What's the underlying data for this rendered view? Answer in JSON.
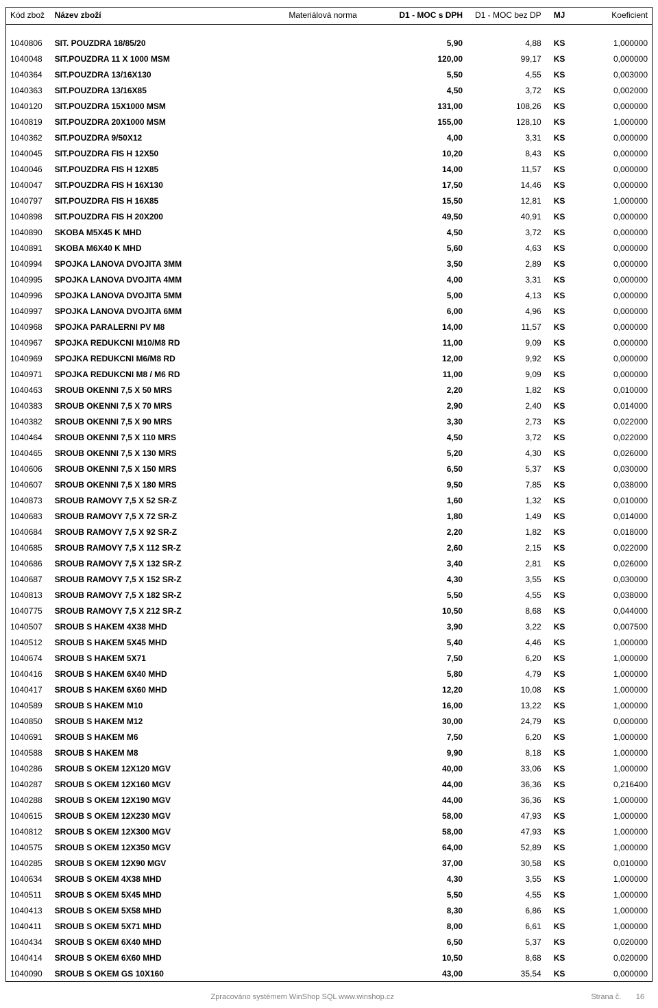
{
  "headers": {
    "code": "Kód zbož",
    "name": "Název zboží",
    "norm": "Materiálová norma",
    "p1": "D1 - MOC s DPH",
    "p2": "D1 - MOC bez DP",
    "mj": "MJ",
    "koef": "Koeficient"
  },
  "rows": [
    {
      "code": "1040806",
      "name": "SIT. POUZDRA 18/85/20",
      "p1": "5,90",
      "p2": "4,88",
      "mj": "KS",
      "koef": "1,000000"
    },
    {
      "code": "1040048",
      "name": "SIT.POUZDRA 11 X 1000 MSM",
      "p1": "120,00",
      "p2": "99,17",
      "mj": "KS",
      "koef": "0,000000"
    },
    {
      "code": "1040364",
      "name": "SIT.POUZDRA 13/16X130",
      "p1": "5,50",
      "p2": "4,55",
      "mj": "KS",
      "koef": "0,003000"
    },
    {
      "code": "1040363",
      "name": "SIT.POUZDRA 13/16X85",
      "p1": "4,50",
      "p2": "3,72",
      "mj": "KS",
      "koef": "0,002000"
    },
    {
      "code": "1040120",
      "name": "SIT.POUZDRA 15X1000 MSM",
      "p1": "131,00",
      "p2": "108,26",
      "mj": "KS",
      "koef": "0,000000"
    },
    {
      "code": "1040819",
      "name": "SIT.POUZDRA 20X1000  MSM",
      "p1": "155,00",
      "p2": "128,10",
      "mj": "KS",
      "koef": "1,000000"
    },
    {
      "code": "1040362",
      "name": "SIT.POUZDRA 9/50X12",
      "p1": "4,00",
      "p2": "3,31",
      "mj": "KS",
      "koef": "0,000000"
    },
    {
      "code": "1040045",
      "name": "SIT.POUZDRA FIS H 12X50",
      "p1": "10,20",
      "p2": "8,43",
      "mj": "KS",
      "koef": "0,000000"
    },
    {
      "code": "1040046",
      "name": "SIT.POUZDRA FIS H 12X85",
      "p1": "14,00",
      "p2": "11,57",
      "mj": "KS",
      "koef": "0,000000"
    },
    {
      "code": "1040047",
      "name": "SIT.POUZDRA FIS H 16X130",
      "p1": "17,50",
      "p2": "14,46",
      "mj": "KS",
      "koef": "0,000000"
    },
    {
      "code": "1040797",
      "name": "SIT.POUZDRA FIS H 16X85",
      "p1": "15,50",
      "p2": "12,81",
      "mj": "KS",
      "koef": "1,000000"
    },
    {
      "code": "1040898",
      "name": "SIT.POUZDRA FIS H 20X200",
      "p1": "49,50",
      "p2": "40,91",
      "mj": "KS",
      "koef": "0,000000"
    },
    {
      "code": "1040890",
      "name": "SKOBA M5X45 K MHD",
      "p1": "4,50",
      "p2": "3,72",
      "mj": "KS",
      "koef": "0,000000"
    },
    {
      "code": "1040891",
      "name": "SKOBA M6X40 K MHD",
      "p1": "5,60",
      "p2": "4,63",
      "mj": "KS",
      "koef": "0,000000"
    },
    {
      "code": "1040994",
      "name": "SPOJKA LANOVA DVOJITA 3MM",
      "p1": "3,50",
      "p2": "2,89",
      "mj": "KS",
      "koef": "0,000000"
    },
    {
      "code": "1040995",
      "name": "SPOJKA LANOVA DVOJITA 4MM",
      "p1": "4,00",
      "p2": "3,31",
      "mj": "KS",
      "koef": "0,000000"
    },
    {
      "code": "1040996",
      "name": "SPOJKA LANOVA DVOJITA 5MM",
      "p1": "5,00",
      "p2": "4,13",
      "mj": "KS",
      "koef": "0,000000"
    },
    {
      "code": "1040997",
      "name": "SPOJKA LANOVA DVOJITA 6MM",
      "p1": "6,00",
      "p2": "4,96",
      "mj": "KS",
      "koef": "0,000000"
    },
    {
      "code": "1040968",
      "name": "SPOJKA PARALERNI PV M8",
      "p1": "14,00",
      "p2": "11,57",
      "mj": "KS",
      "koef": "0,000000"
    },
    {
      "code": "1040967",
      "name": "SPOJKA REDUKCNI M10/M8 RD",
      "p1": "11,00",
      "p2": "9,09",
      "mj": "KS",
      "koef": "0,000000"
    },
    {
      "code": "1040969",
      "name": "SPOJKA REDUKCNI M6/M8 RD",
      "p1": "12,00",
      "p2": "9,92",
      "mj": "KS",
      "koef": "0,000000"
    },
    {
      "code": "1040971",
      "name": "SPOJKA REDUKCNI M8 / M6 RD",
      "p1": "11,00",
      "p2": "9,09",
      "mj": "KS",
      "koef": "0,000000"
    },
    {
      "code": "1040463",
      "name": "SROUB OKENNI 7,5 X  50 MRS",
      "p1": "2,20",
      "p2": "1,82",
      "mj": "KS",
      "koef": "0,010000"
    },
    {
      "code": "1040383",
      "name": "SROUB OKENNI 7,5 X  70 MRS",
      "p1": "2,90",
      "p2": "2,40",
      "mj": "KS",
      "koef": "0,014000"
    },
    {
      "code": "1040382",
      "name": "SROUB OKENNI 7,5 X  90 MRS",
      "p1": "3,30",
      "p2": "2,73",
      "mj": "KS",
      "koef": "0,022000"
    },
    {
      "code": "1040464",
      "name": "SROUB OKENNI 7,5 X 110 MRS",
      "p1": "4,50",
      "p2": "3,72",
      "mj": "KS",
      "koef": "0,022000"
    },
    {
      "code": "1040465",
      "name": "SROUB OKENNI 7,5 X 130 MRS",
      "p1": "5,20",
      "p2": "4,30",
      "mj": "KS",
      "koef": "0,026000"
    },
    {
      "code": "1040606",
      "name": "SROUB OKENNI 7,5 X 150 MRS",
      "p1": "6,50",
      "p2": "5,37",
      "mj": "KS",
      "koef": "0,030000"
    },
    {
      "code": "1040607",
      "name": "SROUB OKENNI 7,5 X 180 MRS",
      "p1": "9,50",
      "p2": "7,85",
      "mj": "KS",
      "koef": "0,038000"
    },
    {
      "code": "1040873",
      "name": "SROUB RAMOVY 7,5 X  52 SR-Z",
      "p1": "1,60",
      "p2": "1,32",
      "mj": "KS",
      "koef": "0,010000"
    },
    {
      "code": "1040683",
      "name": "SROUB RAMOVY 7,5 X  72 SR-Z",
      "p1": "1,80",
      "p2": "1,49",
      "mj": "KS",
      "koef": "0,014000"
    },
    {
      "code": "1040684",
      "name": "SROUB RAMOVY 7,5 X  92 SR-Z",
      "p1": "2,20",
      "p2": "1,82",
      "mj": "KS",
      "koef": "0,018000"
    },
    {
      "code": "1040685",
      "name": "SROUB RAMOVY 7,5 X 112 SR-Z",
      "p1": "2,60",
      "p2": "2,15",
      "mj": "KS",
      "koef": "0,022000"
    },
    {
      "code": "1040686",
      "name": "SROUB RAMOVY 7,5 X 132 SR-Z",
      "p1": "3,40",
      "p2": "2,81",
      "mj": "KS",
      "koef": "0,026000"
    },
    {
      "code": "1040687",
      "name": "SROUB RAMOVY 7,5 X 152 SR-Z",
      "p1": "4,30",
      "p2": "3,55",
      "mj": "KS",
      "koef": "0,030000"
    },
    {
      "code": "1040813",
      "name": "SROUB RAMOVY 7,5 X 182 SR-Z",
      "p1": "5,50",
      "p2": "4,55",
      "mj": "KS",
      "koef": "0,038000"
    },
    {
      "code": "1040775",
      "name": "SROUB RAMOVY 7,5 X 212 SR-Z",
      "p1": "10,50",
      "p2": "8,68",
      "mj": "KS",
      "koef": "0,044000"
    },
    {
      "code": "1040507",
      "name": "SROUB S HAKEM 4X38 MHD",
      "p1": "3,90",
      "p2": "3,22",
      "mj": "KS",
      "koef": "0,007500"
    },
    {
      "code": "1040512",
      "name": "SROUB S HAKEM 5X45 MHD",
      "p1": "5,40",
      "p2": "4,46",
      "mj": "KS",
      "koef": "1,000000"
    },
    {
      "code": "1040674",
      "name": "SROUB S HAKEM 5X71",
      "p1": "7,50",
      "p2": "6,20",
      "mj": "KS",
      "koef": "1,000000"
    },
    {
      "code": "1040416",
      "name": "SROUB S HAKEM 6X40 MHD",
      "p1": "5,80",
      "p2": "4,79",
      "mj": "KS",
      "koef": "1,000000"
    },
    {
      "code": "1040417",
      "name": "SROUB S HAKEM 6X60 MHD",
      "p1": "12,20",
      "p2": "10,08",
      "mj": "KS",
      "koef": "1,000000"
    },
    {
      "code": "1040589",
      "name": "SROUB S HAKEM M10",
      "p1": "16,00",
      "p2": "13,22",
      "mj": "KS",
      "koef": "1,000000"
    },
    {
      "code": "1040850",
      "name": "SROUB S HAKEM M12",
      "p1": "30,00",
      "p2": "24,79",
      "mj": "KS",
      "koef": "0,000000"
    },
    {
      "code": "1040691",
      "name": "SROUB S HAKEM M6",
      "p1": "7,50",
      "p2": "6,20",
      "mj": "KS",
      "koef": "1,000000"
    },
    {
      "code": "1040588",
      "name": "SROUB S HAKEM M8",
      "p1": "9,90",
      "p2": "8,18",
      "mj": "KS",
      "koef": "1,000000"
    },
    {
      "code": "1040286",
      "name": "SROUB S OKEM 12X120 MGV",
      "p1": "40,00",
      "p2": "33,06",
      "mj": "KS",
      "koef": "1,000000"
    },
    {
      "code": "1040287",
      "name": "SROUB S OKEM 12X160 MGV",
      "p1": "44,00",
      "p2": "36,36",
      "mj": "KS",
      "koef": "0,216400"
    },
    {
      "code": "1040288",
      "name": "SROUB S OKEM 12X190 MGV",
      "p1": "44,00",
      "p2": "36,36",
      "mj": "KS",
      "koef": "1,000000"
    },
    {
      "code": "1040615",
      "name": "SROUB S OKEM 12X230 MGV",
      "p1": "58,00",
      "p2": "47,93",
      "mj": "KS",
      "koef": "1,000000"
    },
    {
      "code": "1040812",
      "name": "SROUB S OKEM 12X300 MGV",
      "p1": "58,00",
      "p2": "47,93",
      "mj": "KS",
      "koef": "1,000000"
    },
    {
      "code": "1040575",
      "name": "SROUB S OKEM 12X350 MGV",
      "p1": "64,00",
      "p2": "52,89",
      "mj": "KS",
      "koef": "1,000000"
    },
    {
      "code": "1040285",
      "name": "SROUB S OKEM 12X90 MGV",
      "p1": "37,00",
      "p2": "30,58",
      "mj": "KS",
      "koef": "0,010000"
    },
    {
      "code": "1040634",
      "name": "SROUB S OKEM 4X38 MHD",
      "p1": "4,30",
      "p2": "3,55",
      "mj": "KS",
      "koef": "1,000000"
    },
    {
      "code": "1040511",
      "name": "SROUB S OKEM 5X45 MHD",
      "p1": "5,50",
      "p2": "4,55",
      "mj": "KS",
      "koef": "1,000000"
    },
    {
      "code": "1040413",
      "name": "SROUB S OKEM 5X58 MHD",
      "p1": "8,30",
      "p2": "6,86",
      "mj": "KS",
      "koef": "1,000000"
    },
    {
      "code": "1040411",
      "name": "SROUB S OKEM 5X71 MHD",
      "p1": "8,00",
      "p2": "6,61",
      "mj": "KS",
      "koef": "1,000000"
    },
    {
      "code": "1040434",
      "name": "SROUB S OKEM 6X40 MHD",
      "p1": "6,50",
      "p2": "5,37",
      "mj": "KS",
      "koef": "0,020000"
    },
    {
      "code": "1040414",
      "name": "SROUB S OKEM 6X60 MHD",
      "p1": "10,50",
      "p2": "8,68",
      "mj": "KS",
      "koef": "0,020000"
    },
    {
      "code": "1040090",
      "name": "SROUB S OKEM GS 10X160",
      "p1": "43,00",
      "p2": "35,54",
      "mj": "KS",
      "koef": "0,000000"
    }
  ],
  "footer": {
    "center": "Zpracováno systémem WinShop SQL   www.winshop.cz",
    "right_label": "Strana č.",
    "right_number": "16"
  }
}
